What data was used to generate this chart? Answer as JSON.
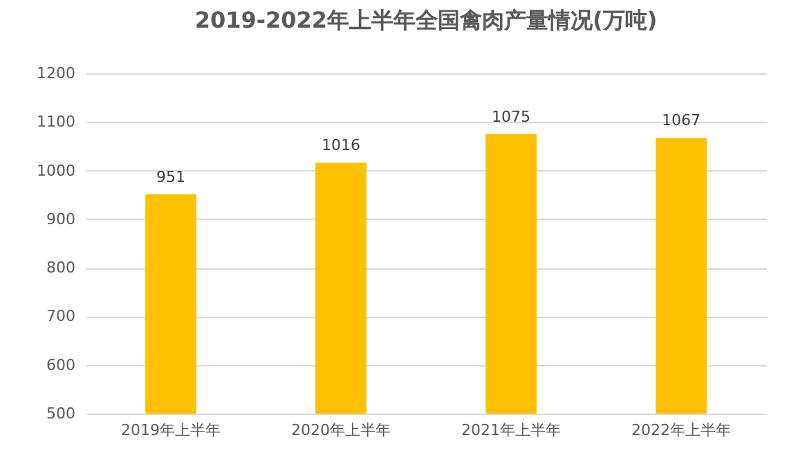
{
  "chart_data": {
    "type": "bar",
    "title": "2019-2022年上半年全国禽肉产量情况(万吨)",
    "categories": [
      "2019年上半年",
      "2020年上半年",
      "2021年上半年",
      "2022年上半年"
    ],
    "values": [
      951,
      1016,
      1075,
      1067
    ],
    "color": "#ffc000",
    "ylim": [
      500,
      1200
    ],
    "yticks": [
      500,
      600,
      700,
      800,
      900,
      1000,
      1100,
      1200
    ],
    "grid": "y",
    "data_labels": true
  }
}
